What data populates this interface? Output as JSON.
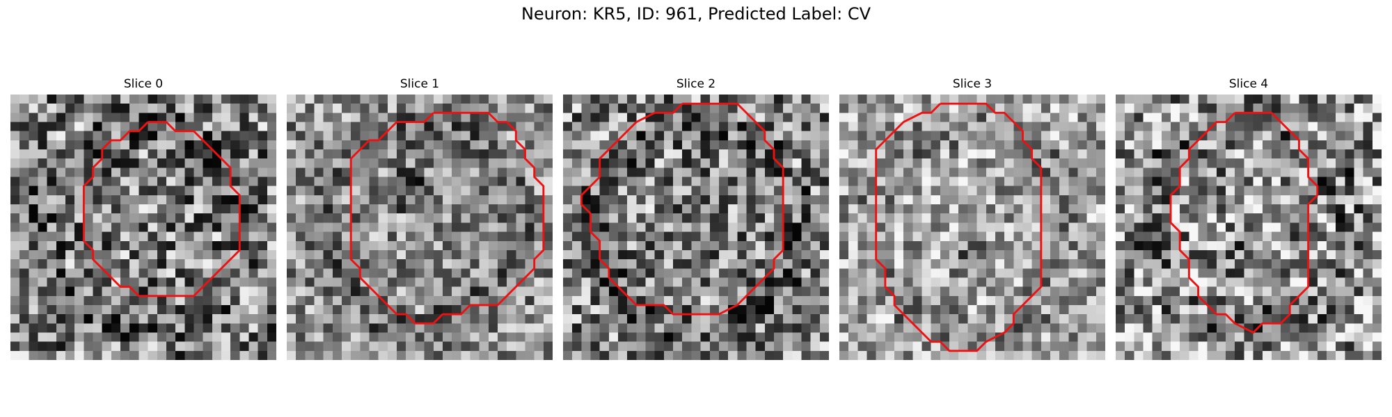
{
  "figure": {
    "title": "Neuron: KR5, ID: 961, Predicted Label: CV"
  },
  "colors": {
    "contour": "#ee1111",
    "colormap": "gray"
  },
  "slices": [
    {
      "label": "Slice 0",
      "contour": [
        [
          15,
          3
        ],
        [
          17,
          3
        ],
        [
          18,
          4
        ],
        [
          20,
          4
        ],
        [
          21,
          5
        ],
        [
          22,
          6
        ],
        [
          23,
          7
        ],
        [
          24,
          8
        ],
        [
          24,
          10
        ],
        [
          25,
          11
        ],
        [
          25,
          13
        ],
        [
          25,
          16
        ],
        [
          25,
          17
        ],
        [
          24,
          18
        ],
        [
          23,
          19
        ],
        [
          22,
          20
        ],
        [
          21,
          21
        ],
        [
          20,
          22
        ],
        [
          14,
          22
        ],
        [
          13,
          21
        ],
        [
          12,
          21
        ],
        [
          11,
          20
        ],
        [
          10,
          19
        ],
        [
          9,
          18
        ],
        [
          9,
          17
        ],
        [
          8,
          16
        ],
        [
          8,
          10
        ],
        [
          9,
          9
        ],
        [
          9,
          8
        ],
        [
          10,
          7
        ],
        [
          10,
          6
        ],
        [
          11,
          5
        ],
        [
          12,
          5
        ],
        [
          13,
          4
        ],
        [
          14,
          4
        ]
      ],
      "tone": 0.5,
      "contrast": 0.9,
      "blob": null
    },
    {
      "label": "Slice 1",
      "contour": [
        [
          16,
          2
        ],
        [
          22,
          2
        ],
        [
          23,
          3
        ],
        [
          24,
          3
        ],
        [
          25,
          4
        ],
        [
          25,
          5
        ],
        [
          26,
          6
        ],
        [
          26,
          7
        ],
        [
          27,
          8
        ],
        [
          27,
          9
        ],
        [
          28,
          10
        ],
        [
          28,
          17
        ],
        [
          27,
          18
        ],
        [
          27,
          19
        ],
        [
          26,
          20
        ],
        [
          25,
          21
        ],
        [
          24,
          22
        ],
        [
          23,
          23
        ],
        [
          20,
          23
        ],
        [
          19,
          24
        ],
        [
          17,
          24
        ],
        [
          16,
          25
        ],
        [
          14,
          25
        ],
        [
          13,
          24
        ],
        [
          12,
          24
        ],
        [
          11,
          23
        ],
        [
          10,
          22
        ],
        [
          9,
          21
        ],
        [
          8,
          20
        ],
        [
          8,
          19
        ],
        [
          7,
          18
        ],
        [
          7,
          7
        ],
        [
          8,
          6
        ],
        [
          9,
          5
        ],
        [
          10,
          5
        ],
        [
          11,
          4
        ],
        [
          12,
          3
        ],
        [
          15,
          3
        ]
      ],
      "tone": 0.55,
      "contrast": 0.7,
      "blob": [
        13,
        10
      ]
    },
    {
      "label": "Slice 2",
      "contour": [
        [
          13,
          1
        ],
        [
          19,
          1
        ],
        [
          20,
          2
        ],
        [
          21,
          3
        ],
        [
          22,
          4
        ],
        [
          22,
          5
        ],
        [
          23,
          6
        ],
        [
          23,
          7
        ],
        [
          24,
          8
        ],
        [
          24,
          17
        ],
        [
          23,
          18
        ],
        [
          23,
          19
        ],
        [
          22,
          20
        ],
        [
          21,
          21
        ],
        [
          20,
          22
        ],
        [
          19,
          23
        ],
        [
          17,
          24
        ],
        [
          12,
          24
        ],
        [
          11,
          23
        ],
        [
          8,
          23
        ],
        [
          7,
          22
        ],
        [
          6,
          21
        ],
        [
          5,
          20
        ],
        [
          5,
          19
        ],
        [
          4,
          18
        ],
        [
          4,
          16
        ],
        [
          3,
          15
        ],
        [
          3,
          13
        ],
        [
          2,
          12
        ],
        [
          2,
          11
        ],
        [
          3,
          10
        ],
        [
          4,
          9
        ],
        [
          4,
          7
        ],
        [
          5,
          6
        ],
        [
          6,
          5
        ],
        [
          7,
          4
        ],
        [
          8,
          3
        ],
        [
          10,
          2
        ],
        [
          12,
          2
        ]
      ],
      "tone": 0.52,
      "contrast": 0.85,
      "blob": null
    },
    {
      "label": "Slice 3",
      "contour": [
        [
          11,
          1
        ],
        [
          16,
          1
        ],
        [
          17,
          2
        ],
        [
          18,
          2
        ],
        [
          19,
          3
        ],
        [
          20,
          4
        ],
        [
          20,
          5
        ],
        [
          21,
          6
        ],
        [
          21,
          7
        ],
        [
          22,
          8
        ],
        [
          22,
          21
        ],
        [
          21,
          22
        ],
        [
          20,
          23
        ],
        [
          19,
          24
        ],
        [
          19,
          25
        ],
        [
          18,
          26
        ],
        [
          16,
          27
        ],
        [
          15,
          28
        ],
        [
          12,
          28
        ],
        [
          11,
          27
        ],
        [
          10,
          27
        ],
        [
          9,
          26
        ],
        [
          8,
          25
        ],
        [
          7,
          24
        ],
        [
          6,
          23
        ],
        [
          6,
          22
        ],
        [
          5,
          21
        ],
        [
          5,
          20
        ],
        [
          5,
          19
        ],
        [
          4,
          18
        ],
        [
          4,
          14
        ],
        [
          4,
          13
        ],
        [
          4,
          12
        ],
        [
          4,
          6
        ],
        [
          5,
          5
        ],
        [
          6,
          4
        ],
        [
          7,
          3
        ],
        [
          9,
          2
        ],
        [
          10,
          2
        ]
      ],
      "tone": 0.65,
      "contrast": 0.7,
      "blob": [
        14,
        17
      ]
    },
    {
      "label": "Slice 4",
      "contour": [
        [
          13,
          2
        ],
        [
          17,
          2
        ],
        [
          18,
          3
        ],
        [
          19,
          4
        ],
        [
          20,
          5
        ],
        [
          20,
          6
        ],
        [
          21,
          7
        ],
        [
          21,
          9
        ],
        [
          22,
          10
        ],
        [
          22,
          11
        ],
        [
          21,
          12
        ],
        [
          21,
          21
        ],
        [
          20,
          22
        ],
        [
          19,
          23
        ],
        [
          19,
          24
        ],
        [
          18,
          25
        ],
        [
          16,
          25
        ],
        [
          15,
          26
        ],
        [
          13,
          25
        ],
        [
          12,
          24
        ],
        [
          11,
          24
        ],
        [
          10,
          23
        ],
        [
          9,
          22
        ],
        [
          9,
          21
        ],
        [
          8,
          20
        ],
        [
          8,
          18
        ],
        [
          7,
          17
        ],
        [
          7,
          16
        ],
        [
          7,
          15
        ],
        [
          6,
          14
        ],
        [
          6,
          13
        ],
        [
          6,
          11
        ],
        [
          7,
          10
        ],
        [
          7,
          8
        ],
        [
          8,
          7
        ],
        [
          8,
          6
        ],
        [
          9,
          5
        ],
        [
          10,
          4
        ],
        [
          11,
          3
        ],
        [
          12,
          3
        ]
      ],
      "tone": 0.6,
      "contrast": 0.95,
      "blob": [
        14,
        17
      ]
    }
  ]
}
